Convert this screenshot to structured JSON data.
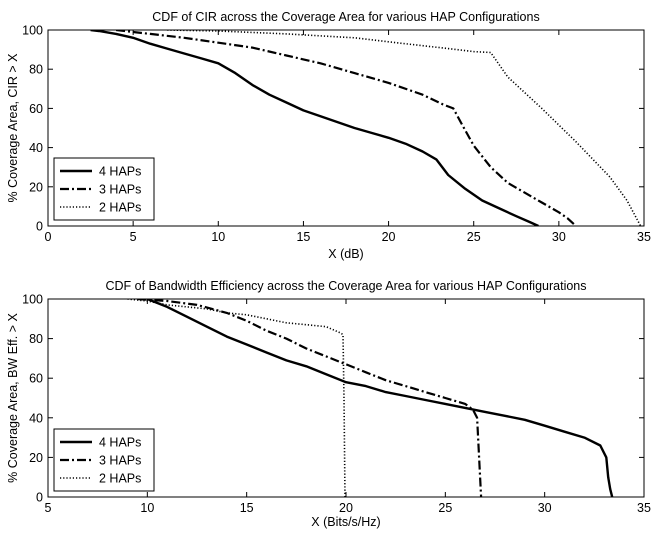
{
  "chart_data": [
    {
      "type": "line",
      "title": "CDF of CIR across the Coverage Area for various HAP Configurations",
      "xlabel": "X (dB)",
      "ylabel": "% Coverage Area, CIR > X",
      "xlim": [
        0,
        35
      ],
      "ylim": [
        0,
        100
      ],
      "xticks": [
        0,
        5,
        10,
        15,
        20,
        25,
        30,
        35
      ],
      "yticks": [
        0,
        20,
        40,
        60,
        80,
        100
      ],
      "grid": false,
      "legend_position": "bottom-left",
      "series": [
        {
          "name": "4 HAPs",
          "style": "solid",
          "color": "#000000",
          "x": [
            2.5,
            3,
            4,
            5,
            6,
            7,
            8,
            9,
            10,
            11,
            12,
            13,
            14,
            15,
            16,
            17,
            18,
            19,
            20,
            21,
            22,
            22.8,
            23.5,
            24.5,
            25.5,
            26.5,
            27.5,
            28.3,
            28.8
          ],
          "y": [
            100,
            99.5,
            98,
            96,
            93,
            90.5,
            88,
            85.5,
            83,
            78,
            72,
            67,
            63,
            59,
            56,
            53,
            50,
            47.5,
            45,
            42,
            38,
            34,
            26,
            19,
            13,
            9,
            5,
            2,
            0
          ]
        },
        {
          "name": "3 HAPs",
          "style": "dashdot",
          "color": "#000000",
          "x": [
            4,
            5,
            6,
            8,
            10,
            12,
            14,
            16,
            18,
            20,
            22,
            23.2,
            23.8,
            24.3,
            25,
            26,
            27,
            28,
            29,
            30,
            30.5,
            31
          ],
          "y": [
            100,
            99,
            98,
            96,
            93.5,
            91,
            87,
            83,
            78,
            73,
            67,
            62,
            60,
            52,
            41,
            30,
            22,
            17,
            12,
            7,
            4,
            0
          ]
        },
        {
          "name": "2 HAPs",
          "style": "dotted",
          "color": "#000000",
          "x": [
            7,
            10,
            14,
            18,
            20,
            22,
            23,
            24,
            25,
            26,
            27,
            29,
            31,
            33,
            34,
            34.8
          ],
          "y": [
            100,
            99.5,
            98,
            96,
            94,
            92,
            91,
            90,
            89,
            88.5,
            76,
            60,
            43,
            25,
            13,
            0
          ]
        }
      ]
    },
    {
      "type": "line",
      "title": "CDF of Bandwidth Efficiency across the Coverage Area for various HAP Configurations",
      "xlabel": "X (Bits/s/Hz)",
      "ylabel": "% Coverage Area, BW Eff. > X",
      "xlim": [
        5,
        35
      ],
      "ylim": [
        0,
        100
      ],
      "xticks": [
        5,
        10,
        15,
        20,
        25,
        30,
        35
      ],
      "yticks": [
        0,
        20,
        40,
        60,
        80,
        100
      ],
      "grid": false,
      "legend_position": "bottom-left",
      "series": [
        {
          "name": "4 HAPs",
          "style": "solid",
          "color": "#000000",
          "x": [
            10,
            11,
            12,
            13,
            14,
            15,
            16,
            17,
            18,
            19,
            20,
            21,
            22,
            23,
            24,
            25,
            26,
            27,
            28,
            29,
            30,
            31,
            32,
            32.8,
            33.1,
            33.2,
            33.3,
            33.4
          ],
          "y": [
            100,
            96,
            91,
            86,
            81,
            77,
            73,
            69,
            66,
            62,
            58,
            56,
            53,
            51,
            49,
            47,
            45,
            43,
            41,
            39,
            36,
            33,
            30,
            26,
            20,
            10,
            4,
            0
          ]
        },
        {
          "name": "3 HAPs",
          "style": "dashdot",
          "color": "#000000",
          "x": [
            9.5,
            11,
            12.5,
            14,
            15,
            16,
            17,
            18,
            19,
            20,
            21,
            22,
            23,
            24,
            25,
            26,
            26.4,
            26.6,
            26.7,
            26.8
          ],
          "y": [
            100,
            99,
            97,
            93,
            89,
            84,
            80,
            75,
            71,
            67,
            63,
            59,
            56,
            53,
            50,
            47,
            44,
            40,
            20,
            0
          ]
        },
        {
          "name": "2 HAPs",
          "style": "dotted",
          "color": "#000000",
          "x": [
            9,
            10,
            11,
            12,
            13,
            14,
            15,
            16,
            17,
            18,
            19,
            19.7,
            19.85,
            19.9,
            19.95
          ],
          "y": [
            100,
            99,
            97,
            96,
            95,
            93,
            92,
            90,
            88,
            87,
            86,
            83,
            82,
            50,
            0
          ]
        }
      ]
    }
  ]
}
